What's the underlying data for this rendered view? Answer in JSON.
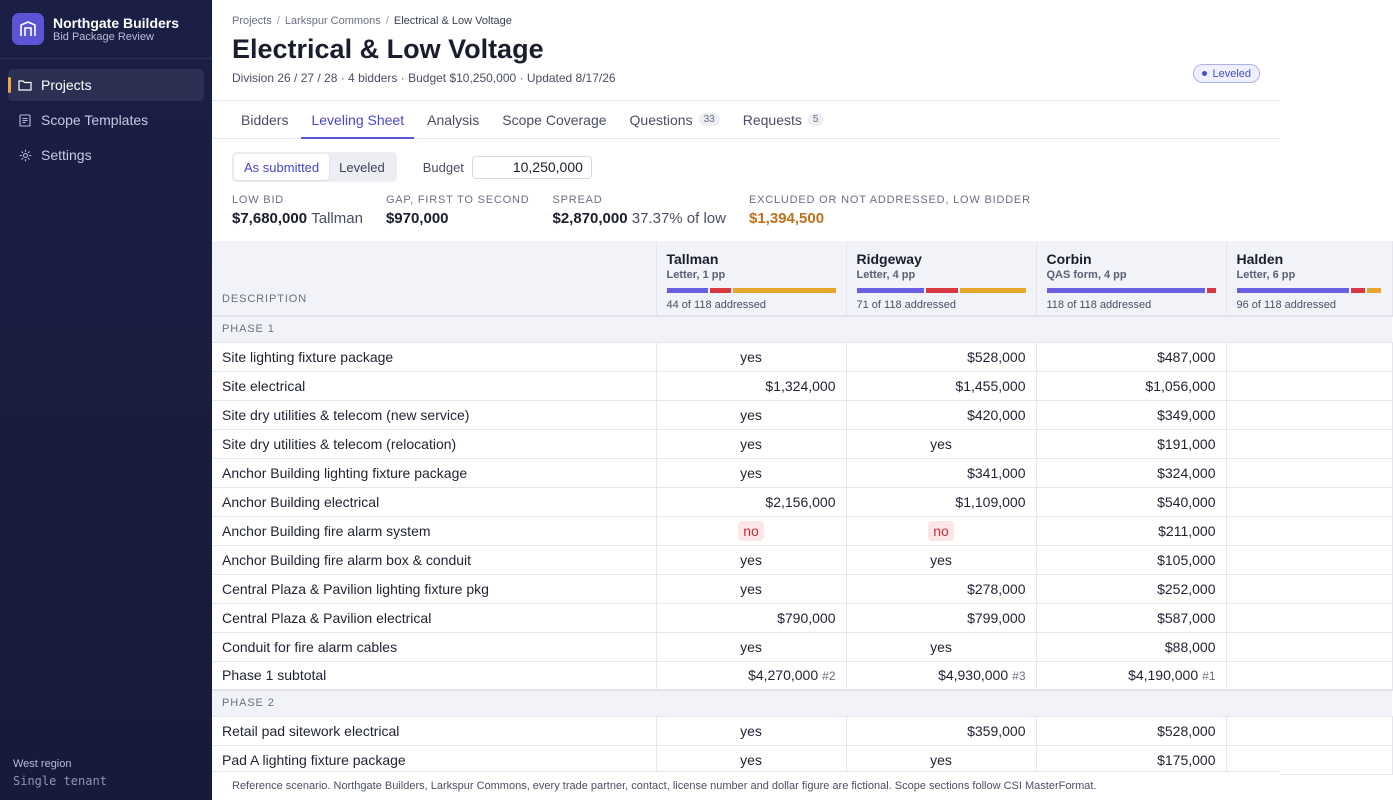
{
  "app": {
    "name": "Northgate Builders",
    "subtitle": "Bid Package Review"
  },
  "sidebar": {
    "items": [
      {
        "label": "Projects",
        "icon": "folder-icon",
        "active": true
      },
      {
        "label": "Scope Templates",
        "icon": "document-icon",
        "active": false
      },
      {
        "label": "Settings",
        "icon": "gear-icon",
        "active": false
      }
    ],
    "footer_region": "West region",
    "footer_tenant": "Single tenant"
  },
  "header": {
    "breadcrumb": [
      "Projects",
      "Larkspur Commons",
      "Electrical & Low Voltage"
    ],
    "title": "Electrical & Low Voltage",
    "meta": "Division 26 / 27 / 28 · 4 bidders · Budget $10,250,000 · Updated 8/17/26",
    "status": "Leveled"
  },
  "tabs": [
    {
      "label": "Bidders",
      "count": null,
      "active": false
    },
    {
      "label": "Leveling Sheet",
      "count": null,
      "active": true
    },
    {
      "label": "Analysis",
      "count": null,
      "active": false
    },
    {
      "label": "Scope Coverage",
      "count": null,
      "active": false
    },
    {
      "label": "Questions",
      "count": "33",
      "active": false
    },
    {
      "label": "Requests",
      "count": "5",
      "active": false
    }
  ],
  "controls": {
    "view_options": [
      "As submitted",
      "Leveled"
    ],
    "view_selected": "As submitted",
    "budget_label": "Budget",
    "budget_value": "10,250,000"
  },
  "stats": {
    "low_bid_label": "LOW BID",
    "low_bid_value": "$7,680,000",
    "low_bid_bidder": "Tallman",
    "gap_label": "GAP, FIRST TO SECOND",
    "gap_value": "$970,000",
    "spread_label": "SPREAD",
    "spread_value": "$2,870,000",
    "spread_pct": "37.37% of low",
    "excluded_label": "EXCLUDED OR NOT ADDRESSED, LOW BIDDER",
    "excluded_value": "$1,394,500"
  },
  "table": {
    "desc_header": "DESCRIPTION",
    "bidders": [
      {
        "name": "Tallman",
        "doc": "Letter, 1 pp",
        "coverage": "44 of 118 addressed",
        "bar": [
          0.25,
          0.13,
          0.62
        ]
      },
      {
        "name": "Ridgeway",
        "doc": "Letter, 4 pp",
        "coverage": "71 of 118 addressed",
        "bar": [
          0.41,
          0.19,
          0.4
        ]
      },
      {
        "name": "Corbin",
        "doc": "QAS form, 4 pp",
        "coverage": "118 of 118 addressed",
        "bar": [
          0.95,
          0.05,
          0.0
        ]
      },
      {
        "name": "Halden",
        "doc": "Letter, 6 pp",
        "coverage": "96 of 118 addressed",
        "bar": [
          0.8,
          0.1,
          0.1
        ]
      }
    ],
    "bar_colors": [
      "#6a5fe0",
      "#d8383f",
      "#e9a62d"
    ],
    "phases": [
      {
        "name": "PHASE 1",
        "rows": [
          {
            "desc": "Site lighting fixture package",
            "values": [
              "yes",
              "$528,000",
              "$487,000",
              ""
            ]
          },
          {
            "desc": "Site electrical",
            "values": [
              "$1,324,000",
              "$1,455,000",
              "$1,056,000",
              ""
            ]
          },
          {
            "desc": "Site dry utilities & telecom (new service)",
            "values": [
              "yes",
              "$420,000",
              "$349,000",
              ""
            ]
          },
          {
            "desc": "Site dry utilities & telecom (relocation)",
            "values": [
              "yes",
              "yes",
              "$191,000",
              ""
            ]
          },
          {
            "desc": "Anchor Building lighting fixture package",
            "values": [
              "yes",
              "$341,000",
              "$324,000",
              ""
            ]
          },
          {
            "desc": "Anchor Building electrical",
            "values": [
              "$2,156,000",
              "$1,109,000",
              "$540,000",
              ""
            ]
          },
          {
            "desc": "Anchor Building fire alarm system",
            "values": [
              "no",
              "no",
              "$211,000",
              ""
            ]
          },
          {
            "desc": "Anchor Building fire alarm box & conduit",
            "values": [
              "yes",
              "yes",
              "$105,000",
              ""
            ]
          },
          {
            "desc": "Central Plaza & Pavilion lighting fixture pkg",
            "values": [
              "yes",
              "$278,000",
              "$252,000",
              ""
            ]
          },
          {
            "desc": "Central Plaza & Pavilion electrical",
            "values": [
              "$790,000",
              "$799,000",
              "$587,000",
              ""
            ]
          },
          {
            "desc": "Conduit for fire alarm cables",
            "values": [
              "yes",
              "yes",
              "$88,000",
              ""
            ]
          }
        ],
        "subtotal": {
          "label": "Phase 1 subtotal",
          "values": [
            "$4,270,000",
            "$4,930,000",
            "$4,190,000",
            ""
          ],
          "ranks": [
            "#2",
            "#3",
            "#1",
            ""
          ]
        }
      },
      {
        "name": "PHASE 2",
        "rows": [
          {
            "desc": "Retail pad sitework electrical",
            "values": [
              "yes",
              "$359,000",
              "$528,000",
              ""
            ]
          },
          {
            "desc": "Pad A lighting fixture package",
            "values": [
              "yes",
              "yes",
              "$175,000",
              ""
            ]
          }
        ]
      }
    ]
  },
  "footer": "Reference scenario. Northgate Builders, Larkspur Commons, every trade partner, contact, license number and dollar figure are fictional. Scope sections follow CSI MasterFormat."
}
